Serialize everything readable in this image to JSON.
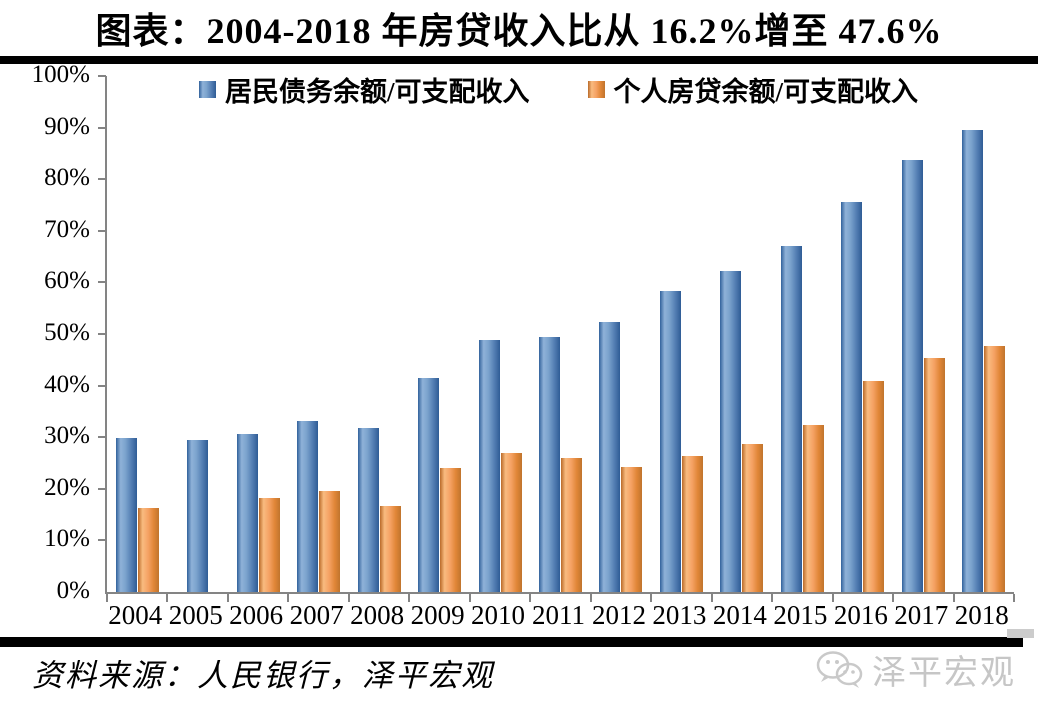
{
  "title": "图表：2004-2018 年房贷收入比从 16.2%增至 47.6%",
  "chart_data": {
    "type": "bar",
    "categories": [
      "2004",
      "2005",
      "2006",
      "2007",
      "2008",
      "2009",
      "2010",
      "2011",
      "2012",
      "2013",
      "2014",
      "2015",
      "2016",
      "2017",
      "2018"
    ],
    "series": [
      {
        "name": "居民债务余额/可支配收入",
        "color": "#4f81bd",
        "values": [
          29.9,
          29.5,
          30.7,
          33.2,
          31.7,
          41.5,
          48.9,
          49.4,
          52.3,
          58.3,
          62.2,
          67.0,
          75.6,
          83.7,
          89.5
        ]
      },
      {
        "name": "个人房贷余额/可支配收入",
        "color": "#f79646",
        "values": [
          16.2,
          null,
          18.2,
          19.6,
          16.6,
          24.1,
          27.0,
          26.0,
          24.3,
          26.4,
          28.6,
          32.3,
          40.9,
          45.4,
          47.6
        ]
      }
    ],
    "ylabel": "",
    "xlabel": "",
    "ylim": [
      0,
      100
    ],
    "y_tick_step": 10,
    "y_tick_labels": [
      "100%",
      "90%",
      "80%",
      "70%",
      "60%",
      "50%",
      "40%",
      "30%",
      "20%",
      "10%",
      "0%"
    ],
    "grid": false,
    "legend_position": "top"
  },
  "source": {
    "label": "资料来源：人民银行，泽平宏观"
  },
  "watermark": {
    "text": "泽平宏观",
    "icon": "wechat-logo"
  }
}
